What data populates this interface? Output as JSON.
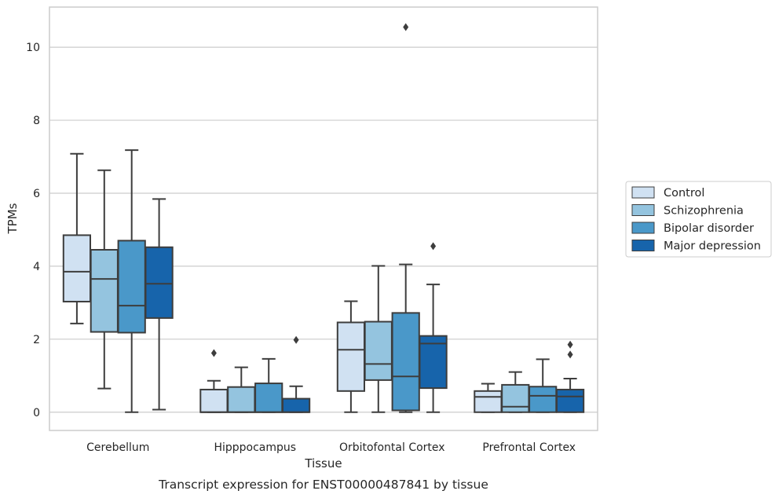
{
  "chart_data": {
    "type": "box",
    "xlabel": "Tissue",
    "ylabel": "TPMs",
    "caption": "Transcript expression for ENST00000487841 by tissue",
    "ylim": [
      -0.5,
      11.1
    ],
    "yticks": [
      0,
      2,
      4,
      6,
      8,
      10
    ],
    "grid": "horizontal",
    "legend_position": "right",
    "categories": [
      "Cerebellum",
      "Hipppocampus",
      "Orbitofontal Cortex",
      "Prefrontal Cortex"
    ],
    "series": [
      {
        "name": "Control",
        "color": "#d0e1f2",
        "boxes": [
          {
            "whisker_low": 2.43,
            "q1": 3.03,
            "median": 3.85,
            "q3": 4.85,
            "whisker_high": 7.08,
            "outliers": []
          },
          {
            "whisker_low": 0.0,
            "q1": 0.0,
            "median": 0.0,
            "q3": 0.62,
            "whisker_high": 0.86,
            "outliers": [
              1.62
            ]
          },
          {
            "whisker_low": 0.0,
            "q1": 0.58,
            "median": 1.71,
            "q3": 2.46,
            "whisker_high": 3.04,
            "outliers": []
          },
          {
            "whisker_low": 0.0,
            "q1": 0.0,
            "median": 0.42,
            "q3": 0.58,
            "whisker_high": 0.78,
            "outliers": []
          }
        ]
      },
      {
        "name": "Schizophrenia",
        "color": "#94c4df",
        "boxes": [
          {
            "whisker_low": 0.65,
            "q1": 2.2,
            "median": 3.65,
            "q3": 4.45,
            "whisker_high": 6.63,
            "outliers": []
          },
          {
            "whisker_low": 0.0,
            "q1": 0.0,
            "median": 0.0,
            "q3": 0.69,
            "whisker_high": 1.23,
            "outliers": []
          },
          {
            "whisker_low": 0.0,
            "q1": 0.88,
            "median": 1.32,
            "q3": 2.48,
            "whisker_high": 4.01,
            "outliers": []
          },
          {
            "whisker_low": 0.0,
            "q1": 0.0,
            "median": 0.15,
            "q3": 0.75,
            "whisker_high": 1.1,
            "outliers": []
          }
        ]
      },
      {
        "name": "Bipolar disorder",
        "color": "#4a98c9",
        "boxes": [
          {
            "whisker_low": 0.0,
            "q1": 2.18,
            "median": 2.92,
            "q3": 4.7,
            "whisker_high": 7.18,
            "outliers": []
          },
          {
            "whisker_low": 0.0,
            "q1": 0.0,
            "median": 0.0,
            "q3": 0.79,
            "whisker_high": 1.46,
            "outliers": []
          },
          {
            "whisker_low": 0.0,
            "q1": 0.05,
            "median": 0.98,
            "q3": 2.72,
            "whisker_high": 4.05,
            "outliers": [
              10.55
            ]
          },
          {
            "whisker_low": 0.0,
            "q1": 0.0,
            "median": 0.45,
            "q3": 0.7,
            "whisker_high": 1.45,
            "outliers": []
          }
        ]
      },
      {
        "name": "Major depression",
        "color": "#1764ab",
        "boxes": [
          {
            "whisker_low": 0.07,
            "q1": 2.58,
            "median": 3.52,
            "q3": 4.52,
            "whisker_high": 5.84,
            "outliers": []
          },
          {
            "whisker_low": 0.0,
            "q1": 0.0,
            "median": 0.0,
            "q3": 0.37,
            "whisker_high": 0.71,
            "outliers": [
              1.98
            ]
          },
          {
            "whisker_low": 0.0,
            "q1": 0.66,
            "median": 1.88,
            "q3": 2.09,
            "whisker_high": 3.5,
            "outliers": [
              4.55
            ]
          },
          {
            "whisker_low": 0.0,
            "q1": 0.0,
            "median": 0.43,
            "q3": 0.62,
            "whisker_high": 0.92,
            "outliers": [
              1.58,
              1.85
            ]
          }
        ]
      }
    ]
  }
}
